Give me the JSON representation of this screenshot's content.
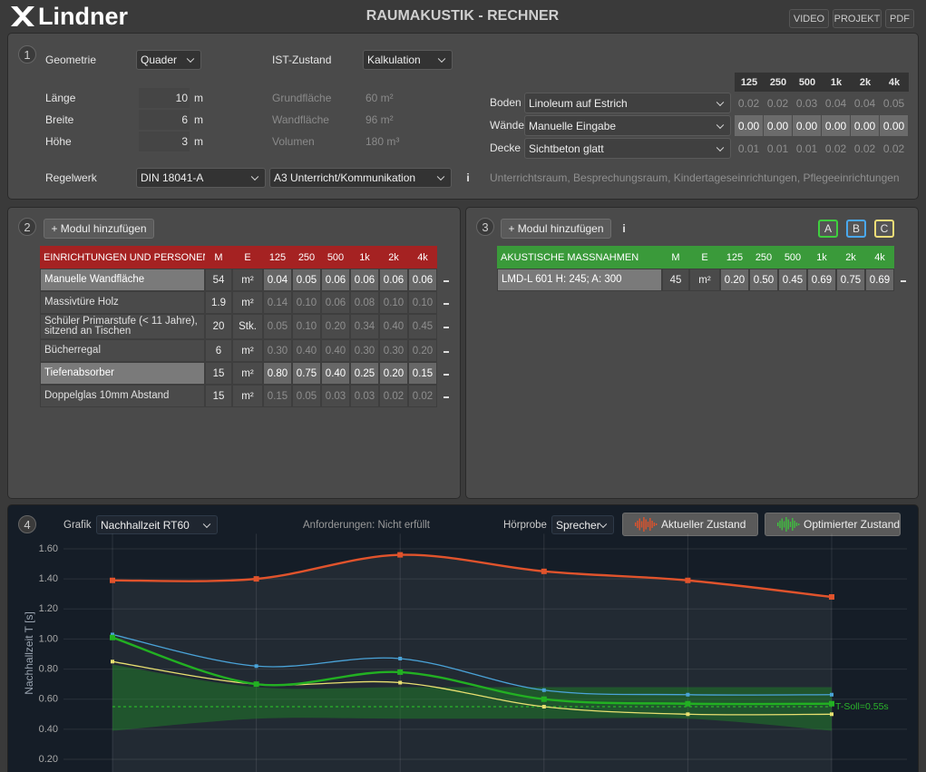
{
  "header": {
    "logo": "Lindner",
    "title": "RAUMAKUSTIK - RECHNER",
    "buttons": [
      "VIDEO",
      "PROJEKT",
      "PDF"
    ]
  },
  "geometry": {
    "number": "1",
    "geometrie_label": "Geometrie",
    "geometrie": "Quader",
    "ist_label": "IST-Zustand",
    "ist": "Kalkulation",
    "dims": [
      {
        "label": "Länge",
        "value": "10",
        "unit": "m"
      },
      {
        "label": "Breite",
        "value": "6",
        "unit": "m"
      },
      {
        "label": "Höhe",
        "value": "3",
        "unit": "m"
      }
    ],
    "areas": [
      {
        "label": "Grundfläche",
        "value": "60 m²"
      },
      {
        "label": "Wandfläche",
        "value": "96 m²"
      },
      {
        "label": "Volumen",
        "value": "180 m³"
      }
    ],
    "regelwerk_label": "Regelwerk",
    "regelwerk": "DIN 18041-A",
    "nutzung": "A3 Unterricht/Kommunikation",
    "info": "i",
    "description": "Unterrichtsraum, Besprechungsraum, Kindertageseinrichtungen, Pflegeeinrichtungen"
  },
  "surfaces": {
    "bands": [
      "125",
      "250",
      "500",
      "1k",
      "2k",
      "4k"
    ],
    "rows": [
      {
        "label": "Boden",
        "material": "Linoleum auf Estrich",
        "values": [
          "0.02",
          "0.02",
          "0.03",
          "0.04",
          "0.04",
          "0.05"
        ],
        "active": false
      },
      {
        "label": "Wände",
        "material": "Manuelle Eingabe",
        "values": [
          "0.00",
          "0.00",
          "0.00",
          "0.00",
          "0.00",
          "0.00"
        ],
        "active": true
      },
      {
        "label": "Decke",
        "material": "Sichtbeton glatt",
        "values": [
          "0.01",
          "0.01",
          "0.01",
          "0.02",
          "0.02",
          "0.02"
        ],
        "active": false
      }
    ]
  },
  "modules": {
    "number": "2",
    "add": "+ Modul hinzufügen",
    "header": [
      "EINRICHTUNGEN UND PERSONEN",
      "M",
      "E",
      "125",
      "250",
      "500",
      "1k",
      "2k",
      "4k"
    ],
    "rows": [
      {
        "cells": [
          "Manuelle Wandfläche",
          "54",
          "m²",
          "0.04",
          "0.05",
          "0.06",
          "0.06",
          "0.06",
          "0.06"
        ],
        "active": true
      },
      {
        "cells": [
          "Massivtüre Holz",
          "1.9",
          "m²",
          "0.14",
          "0.10",
          "0.06",
          "0.08",
          "0.10",
          "0.10"
        ],
        "active": false
      },
      {
        "cells": [
          "Schüler Primarstufe (< 11 Jahre), sitzend an Tischen",
          "20",
          "Stk.",
          "0.05",
          "0.10",
          "0.20",
          "0.34",
          "0.40",
          "0.45"
        ],
        "active": false
      },
      {
        "cells": [
          "Bücherregal",
          "6",
          "m²",
          "0.30",
          "0.40",
          "0.40",
          "0.30",
          "0.30",
          "0.20"
        ],
        "active": false
      },
      {
        "cells": [
          "Tiefenabsorber",
          "15",
          "m²",
          "0.80",
          "0.75",
          "0.40",
          "0.25",
          "0.20",
          "0.15"
        ],
        "active": true
      },
      {
        "cells": [
          "Doppelglas 10mm Abstand",
          "15",
          "m²",
          "0.15",
          "0.05",
          "0.03",
          "0.03",
          "0.02",
          "0.02"
        ],
        "active": false
      }
    ]
  },
  "measures": {
    "number": "3",
    "add": "+ Modul hinzufügen",
    "info": "i",
    "variants": [
      "A",
      "B",
      "C"
    ],
    "header": [
      "AKUSTISCHE MASSNAHMEN",
      "M",
      "E",
      "125",
      "250",
      "500",
      "1k",
      "2k",
      "4k"
    ],
    "rows": [
      {
        "cells": [
          "LMD-L 601 H: 245; A: 300",
          "45",
          "m²",
          "0.20",
          "0.50",
          "0.45",
          "0.69",
          "0.75",
          "0.69"
        ],
        "active": true
      }
    ]
  },
  "controls": {
    "number": "4",
    "grafik_label": "Grafik",
    "grafik": "Nachhallzeit RT60",
    "status": "Anforderungen: Nicht erfüllt",
    "hoerprobe_label": "Hörprobe",
    "hoerprobe": "Sprecher",
    "buttons": [
      "Aktueller Zustand",
      "Optimierter Zustand"
    ]
  },
  "chart_data": {
    "type": "line",
    "y_label": "Nachhallzeit T [s]",
    "categories": [
      null,
      null,
      null,
      null,
      null,
      null
    ],
    "ylim": [
      0.1,
      1.7
    ],
    "yticks": [
      {
        "value": 0.2,
        "label": "0.20"
      },
      {
        "value": 0.4,
        "label": "0.40"
      },
      {
        "value": 0.6,
        "label": "0.60"
      },
      {
        "value": 0.8,
        "label": "0.80"
      },
      {
        "value": 1.0,
        "label": "1.00"
      },
      {
        "value": 1.2,
        "label": "1.20"
      },
      {
        "value": 1.4,
        "label": "1.40"
      },
      {
        "value": 1.6,
        "label": "1.60"
      }
    ],
    "grid": true,
    "band": {
      "color": "#1e8a26",
      "upper": [
        0.83,
        0.68,
        0.68,
        0.68,
        0.68,
        0.68
      ],
      "lower": [
        0.39,
        0.47,
        0.47,
        0.47,
        0.47,
        0.39
      ]
    },
    "target": {
      "value": 0.55,
      "label": "T-Soll=0.55s",
      "color": "#2bb52b"
    },
    "series": [
      {
        "color": "#e0532c",
        "values": [
          1.39,
          1.4,
          1.56,
          1.45,
          1.39,
          1.28
        ]
      },
      {
        "color": "#4aa3d8",
        "values": [
          1.03,
          0.82,
          0.87,
          0.66,
          0.63,
          0.63
        ]
      },
      {
        "color": "#e8e070",
        "values": [
          0.85,
          0.7,
          0.71,
          0.55,
          0.5,
          0.5
        ]
      },
      {
        "color": "#22b022",
        "values": [
          1.01,
          0.7,
          0.78,
          0.6,
          0.57,
          0.57
        ]
      }
    ]
  }
}
